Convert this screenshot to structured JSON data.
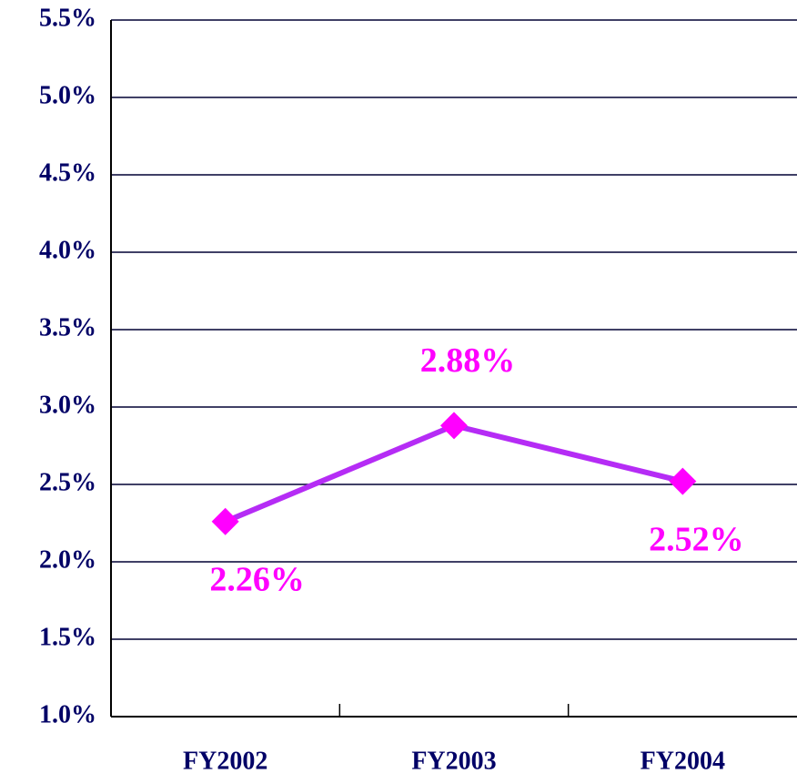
{
  "chart_data": {
    "type": "line",
    "categories": [
      "FY2002",
      "FY2003",
      "FY2004"
    ],
    "series": [
      {
        "color": "#b52cf5",
        "marker_color": "#ff00ff",
        "values": [
          2.26,
          2.88,
          2.52
        ],
        "value_labels": [
          "2.26%",
          "2.88%",
          "2.52%"
        ]
      }
    ],
    "ylim": [
      1.0,
      5.5
    ],
    "yticks": [
      {
        "value": 1.0,
        "label": "1.0%"
      },
      {
        "value": 1.5,
        "label": "1.5%"
      },
      {
        "value": 2.0,
        "label": "2.0%"
      },
      {
        "value": 2.5,
        "label": "2.5%"
      },
      {
        "value": 3.0,
        "label": "3.0%"
      },
      {
        "value": 3.5,
        "label": "3.5%"
      },
      {
        "value": 4.0,
        "label": "4.0%"
      },
      {
        "value": 4.5,
        "label": "4.5%"
      },
      {
        "value": 5.0,
        "label": "5.0%"
      },
      {
        "value": 5.5,
        "label": "5.5%"
      }
    ],
    "grid": true
  }
}
